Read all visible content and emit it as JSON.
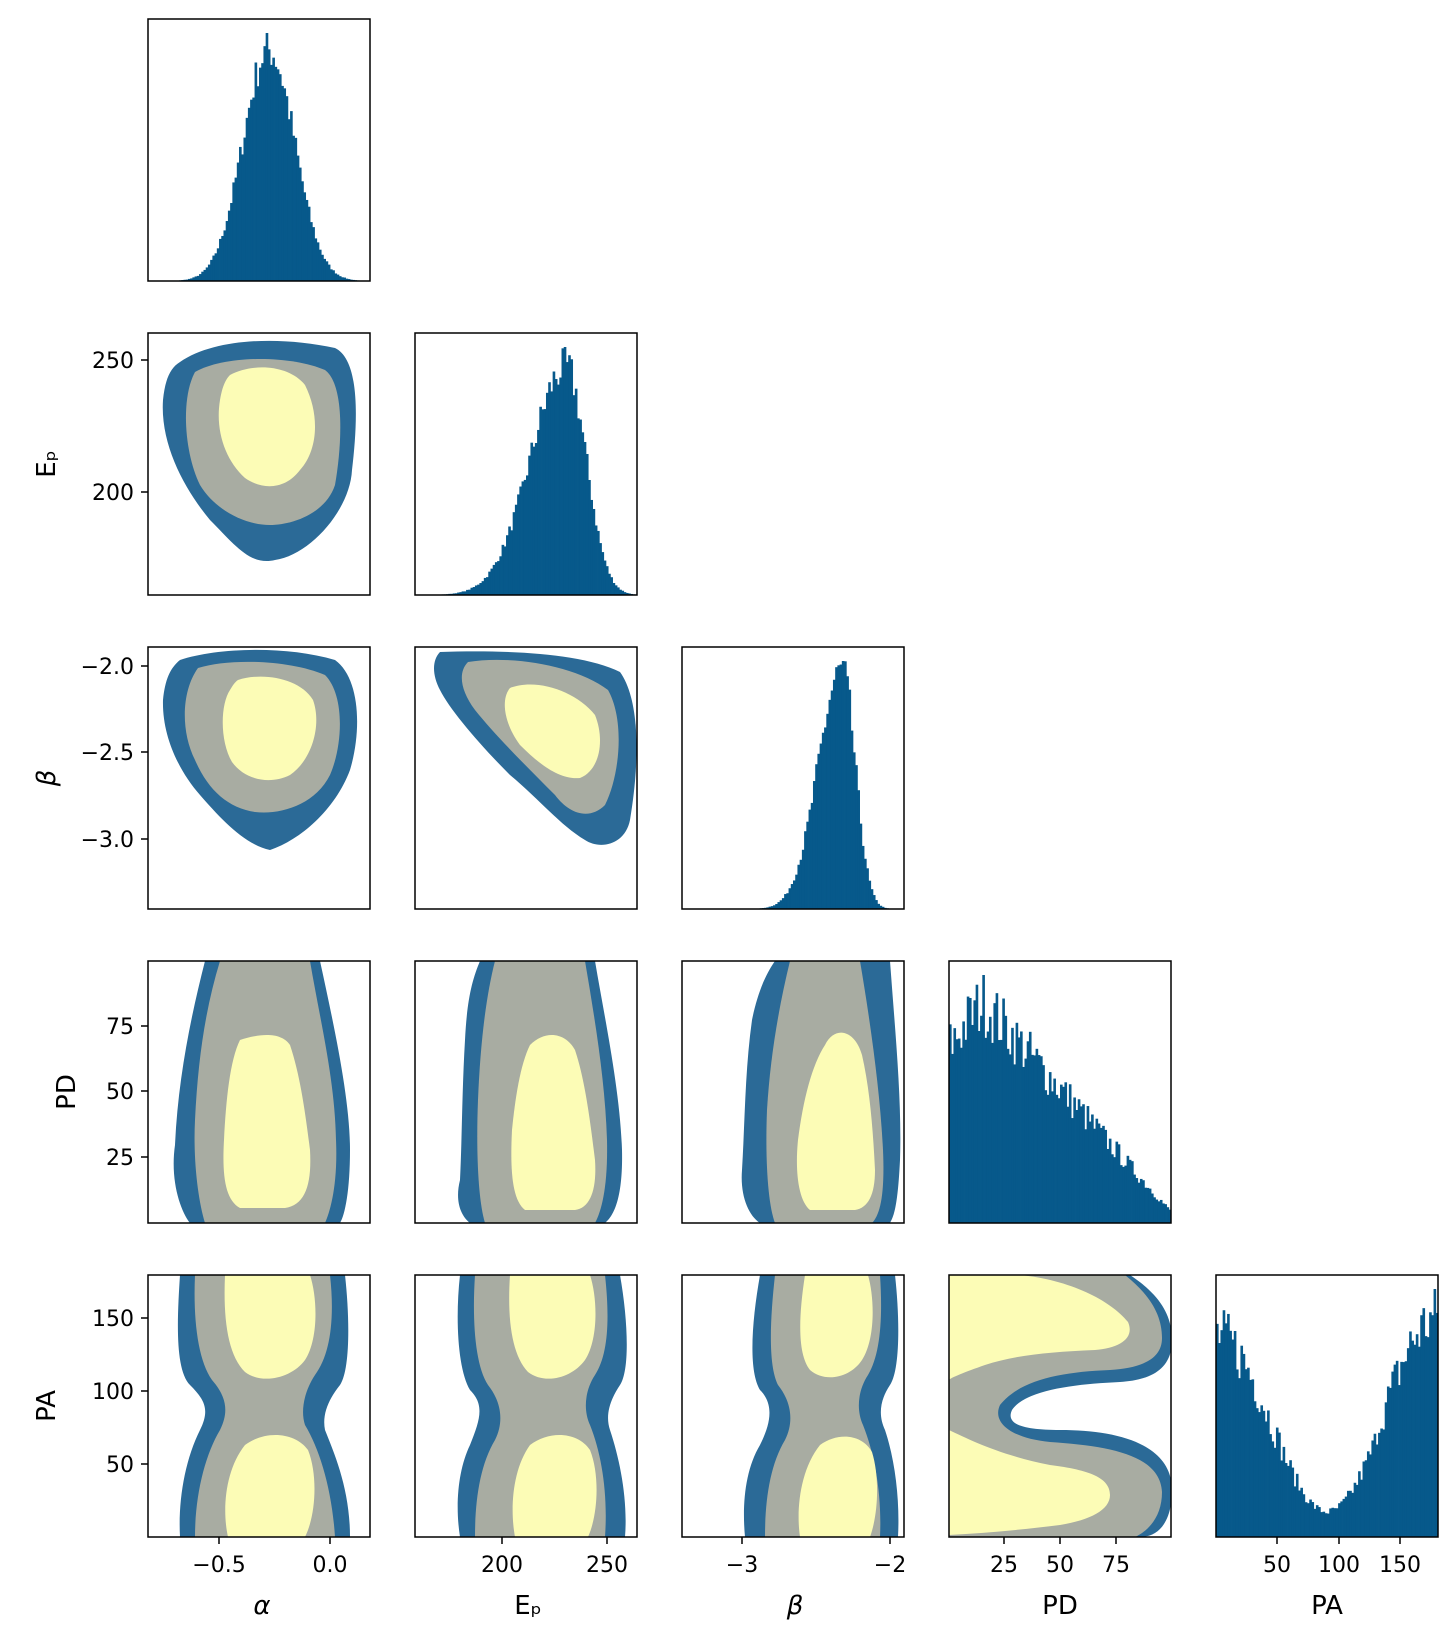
{
  "colors": {
    "hist": "#07598b",
    "contour_outer": "#2b6a97",
    "contour_mid": "#a8aca2",
    "contour_inner": "#fcfcb6",
    "frame": "#000000"
  },
  "chart_data": {
    "type": "corner",
    "parameters": [
      {
        "key": "alpha",
        "label": "α",
        "range": [
          -0.84,
          0.19
        ],
        "ticks": [
          -0.5,
          0.0
        ],
        "tick_labels": [
          "−0.5",
          "0.0"
        ]
      },
      {
        "key": "Ep",
        "label": "Eₚ",
        "range": [
          160,
          260
        ],
        "ticks": [
          200,
          250
        ],
        "tick_labels": [
          "200",
          "250"
        ]
      },
      {
        "key": "beta",
        "label": "β",
        "range": [
          -3.4,
          -1.9
        ],
        "ticks": [
          -3.0,
          -2.5,
          -2.0
        ],
        "tick_labels": [
          "−3",
          "−2.5",
          "−2"
        ]
      },
      {
        "key": "PD",
        "label": "PD",
        "range": [
          0,
          100
        ],
        "ticks": [
          25,
          50,
          75
        ],
        "tick_labels": [
          "25",
          "50",
          "75"
        ]
      },
      {
        "key": "PA",
        "label": "PA",
        "range": [
          0,
          180
        ],
        "ticks": [
          50,
          100,
          150
        ],
        "tick_labels": [
          "50",
          "100",
          "150"
        ]
      }
    ],
    "x_tick_labels": {
      "alpha": [
        "−0.5",
        "0.0"
      ],
      "Ep": [
        "200",
        "250"
      ],
      "beta": [
        "−3",
        "−2"
      ],
      "PD": [
        "25",
        "50",
        "75"
      ],
      "PA": [
        "50",
        "100",
        "150"
      ]
    },
    "y_tick_labels": {
      "Ep": [
        "200",
        "250"
      ],
      "beta": [
        "−3.0",
        "−2.5",
        "−2.0"
      ],
      "PD": [
        "25",
        "50",
        "75"
      ],
      "PA": [
        "50",
        "100",
        "150"
      ]
    },
    "marginals": [
      {
        "param": "alpha",
        "shape": "gaussian",
        "mean": -0.28,
        "sd": 0.12
      },
      {
        "param": "Ep",
        "shape": "skew-left",
        "mode": 228,
        "sd_left": 16,
        "sd_right": 9
      },
      {
        "param": "beta",
        "shape": "skew-left",
        "mode": -2.32,
        "sd_left": 0.16,
        "sd_right": 0.09
      },
      {
        "param": "PD",
        "shape": "decreasing",
        "peak": 15
      },
      {
        "param": "PA",
        "shape": "bimodal",
        "modes": [
          0,
          180
        ]
      }
    ],
    "contour_levels": [
      "outer",
      "mid",
      "inner"
    ],
    "grid": false,
    "legend": "none"
  }
}
